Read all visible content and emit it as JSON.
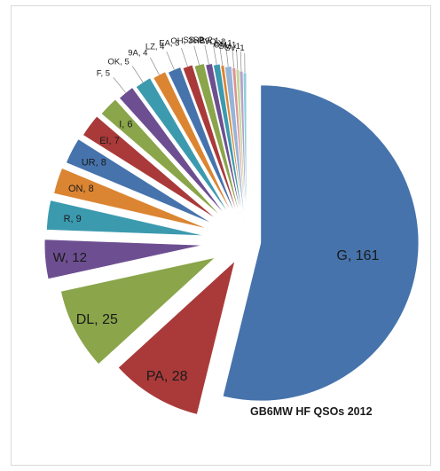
{
  "chart_data": {
    "type": "pie",
    "title": "GB6MW  HF QSOs 2012",
    "categories": [
      "G",
      "PA",
      "DL",
      "W",
      "R",
      "ON",
      "UR",
      "EI",
      "I",
      "F",
      "OK",
      "9A",
      "LZ",
      "EA",
      "OH",
      "SS",
      "SP",
      "HB9",
      "YO",
      "LY",
      "OM",
      "SM",
      "SV"
    ],
    "values": [
      161,
      28,
      25,
      12,
      9,
      8,
      8,
      7,
      6,
      5,
      5,
      4,
      4,
      3,
      3,
      2,
      2,
      1,
      2,
      1,
      1,
      1,
      1
    ],
    "labels": [
      "G, 161",
      "PA, 28",
      "DL, 25",
      "W, 12",
      "R, 9",
      "ON, 8",
      "UR, 8",
      "EI, 7",
      "I, 6",
      "F, 5",
      "OK, 5",
      "9A, 4",
      "LZ, 4",
      "EA, 3",
      "OH, 3",
      "SS, 2",
      "SP, 2",
      "HB9, 1",
      "YO, 2",
      "LY, 1",
      "OM, 1",
      "SM, 1",
      "SV, 1"
    ],
    "colors": [
      "#4673ac",
      "#aa3a3a",
      "#8aa54a",
      "#6d4f91",
      "#3c9aaf",
      "#db8532",
      "#4673ac",
      "#aa3a3a",
      "#8aa54a",
      "#6d4f91",
      "#3c9aaf",
      "#db8532",
      "#4673ac",
      "#aa3a3a",
      "#8aa54a",
      "#6d4f91",
      "#3c9aaf",
      "#db8532",
      "#96b4d8",
      "#d99594",
      "#c3d69b",
      "#b3a2c7",
      "#93cddd"
    ]
  }
}
